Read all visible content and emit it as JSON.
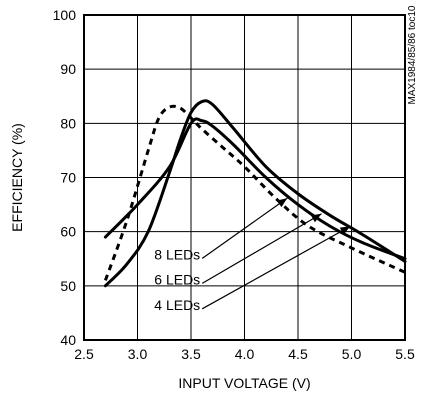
{
  "chart_data": {
    "type": "line",
    "title": "",
    "xlabel": "INPUT VOLTAGE (V)",
    "ylabel": "EFFICIENCY (%)",
    "xlim": [
      2.5,
      5.5
    ],
    "ylim": [
      40,
      100
    ],
    "xticks": [
      "2.5",
      "3.0",
      "3.5",
      "4.0",
      "4.5",
      "5.0",
      "5.5"
    ],
    "yticks": [
      "40",
      "50",
      "60",
      "70",
      "80",
      "90",
      "100"
    ],
    "grid": true,
    "side_label": "MAX1984/85/86 toc10",
    "series": [
      {
        "name": "8 LEDs",
        "style": "solid",
        "x": [
          2.7,
          3.0,
          3.3,
          3.5,
          3.6,
          3.7,
          3.9,
          4.2,
          4.5,
          4.8,
          5.1,
          5.5
        ],
        "y": [
          59,
          65,
          72,
          80,
          80.5,
          79.5,
          76,
          70,
          65,
          61,
          58,
          55
        ]
      },
      {
        "name": "6 LEDs",
        "style": "solid",
        "x": [
          2.7,
          2.9,
          3.1,
          3.3,
          3.4,
          3.5,
          3.6,
          3.7,
          3.9,
          4.2,
          4.5,
          4.8,
          5.1,
          5.5
        ],
        "y": [
          50,
          54,
          60,
          71,
          77,
          82,
          84,
          83.5,
          79,
          72,
          67,
          63,
          59.5,
          54.5
        ]
      },
      {
        "name": "4 LEDs",
        "style": "dashed",
        "x": [
          2.7,
          2.9,
          3.1,
          3.2,
          3.3,
          3.4,
          3.5,
          3.6,
          3.8,
          4.0,
          4.3,
          4.6,
          5.0,
          5.5
        ],
        "y": [
          51,
          62,
          75,
          81,
          83,
          82.8,
          81,
          79,
          75.5,
          72,
          66,
          61,
          57,
          52.5
        ]
      }
    ],
    "annotations": [
      {
        "text": "8 LEDs",
        "series": "8 LEDs",
        "label_x": 3.1,
        "label_y": 55.8,
        "point_x": 4.4,
        "point_y": 66.2
      },
      {
        "text": "6 LEDs",
        "series": "6 LEDs",
        "label_x": 3.1,
        "label_y": 51.2,
        "point_x": 4.72,
        "point_y": 63.3
      },
      {
        "text": "4 LEDs",
        "series": "4 LEDs",
        "label_x": 3.1,
        "label_y": 46.5,
        "point_x": 4.99,
        "point_y": 61.0
      }
    ]
  }
}
